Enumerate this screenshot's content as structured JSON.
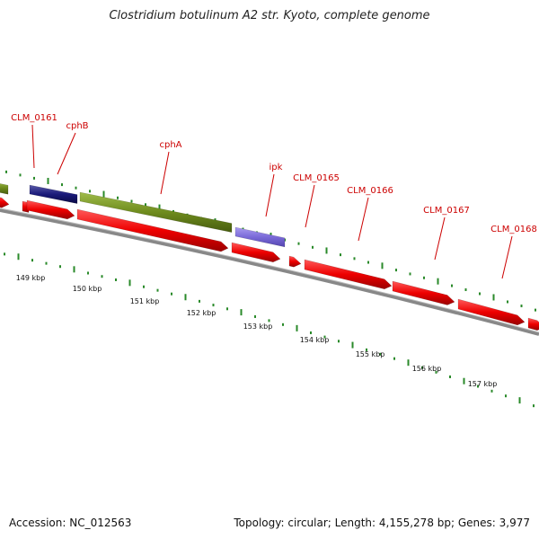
{
  "title": "Clostridium botulinum A2 str. Kyoto, complete genome",
  "footer": {
    "accession": "Accession: NC_012563",
    "summary": "Topology: circular; Length: 4,155,278 bp; Genes: 3,977"
  },
  "colors": {
    "cds_forward": "#ee0000",
    "green_feature": "#6e8b1d",
    "navy_feature": "#1a1a7a",
    "purple_feature": "#7a6ad8",
    "backbone": "#888888",
    "label": "#cc0000",
    "tick": "#2a8a2a"
  },
  "gene_labels": [
    "CLM_0161",
    "cphB",
    "cphA",
    "ipk",
    "CLM_0165",
    "CLM_0166",
    "CLM_0167",
    "CLM_0168"
  ],
  "scale_labels": [
    "149 kbp",
    "150 kbp",
    "151 kbp",
    "152 kbp",
    "153 kbp",
    "154 kbp",
    "155 kbp",
    "156 kbp",
    "157 kbp"
  ]
}
